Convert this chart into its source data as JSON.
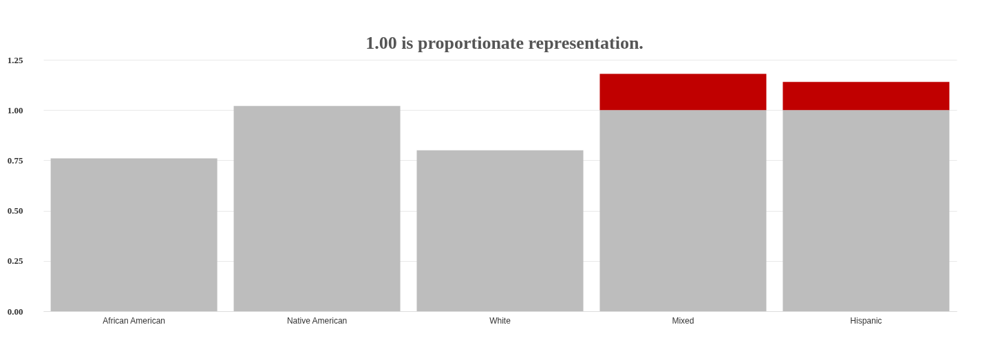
{
  "chart_data": {
    "type": "bar",
    "stacked": true,
    "categories": [
      "African American",
      "Native American",
      "White",
      "Mixed",
      "Hispanic"
    ],
    "series": [
      {
        "color": "#bdbdbd",
        "values": [
          0.76,
          1.02,
          0.8,
          1.0,
          1.0
        ]
      },
      {
        "color": "#c00000",
        "values": [
          null,
          null,
          null,
          0.18,
          0.14
        ]
      }
    ],
    "ylim": [
      0,
      1.25
    ],
    "yticks": [
      {
        "value": 0,
        "label": "0.00"
      },
      {
        "value": 0.25,
        "label": "0.25"
      },
      {
        "value": 0.5,
        "label": "0.50"
      },
      {
        "value": 0.75,
        "label": "0.75"
      },
      {
        "value": 1,
        "label": "1.00"
      },
      {
        "value": 1.25,
        "label": "1.25"
      }
    ],
    "grid": "y",
    "legend": false,
    "annotations": [
      "1.00 is proportionate representation."
    ]
  }
}
